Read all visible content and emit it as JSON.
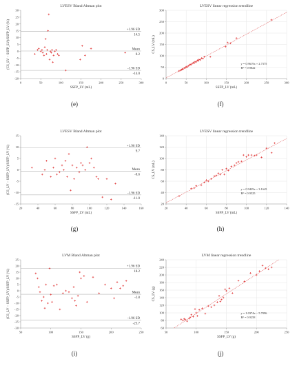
{
  "captions": [
    "(e)",
    "(f)",
    "(g)",
    "(h)",
    "(i)",
    "(j)"
  ],
  "chart_data": [
    {
      "type": "scatter",
      "title": "LVESV Bland Altman plot",
      "xlabel": "SSFP_LV (mL)",
      "ylabel": "(CS_LV − SSFP_LV)/SSFP_LV (%)",
      "xlim": [
        0,
        300
      ],
      "ylim": [
        -20,
        30
      ],
      "xticks": [
        0,
        50,
        100,
        150,
        200,
        250,
        300
      ],
      "yticks": [
        -20,
        -15,
        -10,
        -5,
        0,
        5,
        10,
        15,
        20,
        25,
        30
      ],
      "grid": false,
      "reference_lines": [
        {
          "y": 14.5,
          "label": "+1.96 SD",
          "value_label": "14.5"
        },
        {
          "y": 0.2,
          "label": "Mean",
          "value_label": "0.2"
        },
        {
          "y": -14.0,
          "label": "-1.96 SD",
          "value_label": "-14.0"
        }
      ],
      "points": [
        [
          35,
          -2
        ],
        [
          42,
          1
        ],
        [
          45,
          2
        ],
        [
          50,
          0
        ],
        [
          53,
          1
        ],
        [
          55,
          -1
        ],
        [
          58,
          -3
        ],
        [
          60,
          3
        ],
        [
          62,
          9
        ],
        [
          64,
          -2
        ],
        [
          66,
          1
        ],
        [
          68,
          15
        ],
        [
          70,
          27
        ],
        [
          72,
          -6
        ],
        [
          74,
          0
        ],
        [
          76,
          -1
        ],
        [
          78,
          1
        ],
        [
          80,
          -8
        ],
        [
          82,
          -3
        ],
        [
          85,
          0
        ],
        [
          88,
          1
        ],
        [
          92,
          -2
        ],
        [
          95,
          -3
        ],
        [
          112,
          -14
        ],
        [
          148,
          -6
        ],
        [
          153,
          4
        ],
        [
          160,
          -3
        ],
        [
          175,
          2
        ],
        [
          260,
          -1
        ]
      ]
    },
    {
      "type": "scatter",
      "title": "LVESV linear regression trendline",
      "xlabel": "SSFP_LV (mL)",
      "ylabel": "CS_LV (mL)",
      "xlim": [
        0,
        300
      ],
      "ylim": [
        0,
        300
      ],
      "xticks": [
        0,
        50,
        100,
        150,
        200,
        250,
        300
      ],
      "yticks": [
        0,
        50,
        100,
        150,
        200,
        250,
        300
      ],
      "grid": true,
      "fit": {
        "slope": 0.9619,
        "intercept": 2.7375,
        "equation": "y = 0.9619x + 2.7375",
        "r2": "R² = 0.9822"
      },
      "points": [
        [
          32,
          33
        ],
        [
          35,
          36
        ],
        [
          38,
          38
        ],
        [
          40,
          42
        ],
        [
          42,
          41
        ],
        [
          45,
          46
        ],
        [
          48,
          47
        ],
        [
          50,
          52
        ],
        [
          52,
          50
        ],
        [
          55,
          55
        ],
        [
          57,
          58
        ],
        [
          60,
          62
        ],
        [
          62,
          61
        ],
        [
          65,
          66
        ],
        [
          68,
          70
        ],
        [
          70,
          68
        ],
        [
          72,
          74
        ],
        [
          75,
          73
        ],
        [
          78,
          80
        ],
        [
          80,
          78
        ],
        [
          82,
          84
        ],
        [
          85,
          82
        ],
        [
          88,
          90
        ],
        [
          92,
          88
        ],
        [
          95,
          96
        ],
        [
          110,
          96
        ],
        [
          148,
          140
        ],
        [
          153,
          158
        ],
        [
          160,
          155
        ],
        [
          175,
          178
        ],
        [
          262,
          258
        ]
      ]
    },
    {
      "type": "scatter",
      "title": "LVESV Bland Altman plot",
      "xlabel": "SSFP_LV (mL)",
      "ylabel": "(CS_LV − SSFP_LV)/SSFP_LV (%)",
      "xlim": [
        20,
        160
      ],
      "ylim": [
        -15,
        15
      ],
      "xticks": [
        20,
        40,
        60,
        80,
        100,
        120,
        140,
        160
      ],
      "yticks": [
        -15,
        -10,
        -5,
        0,
        5,
        10,
        15
      ],
      "grid": false,
      "reference_lines": [
        {
          "y": 9.7,
          "label": "+1.96 SD",
          "value_label": "9.7"
        },
        {
          "y": -0.6,
          "label": "Mean",
          "value_label": "-0.6"
        },
        {
          "y": -11.0,
          "label": "-1.96 SD",
          "value_label": "-11.0"
        }
      ],
      "points": [
        [
          33,
          1
        ],
        [
          45,
          -2
        ],
        [
          48,
          0
        ],
        [
          50,
          4
        ],
        [
          55,
          -3
        ],
        [
          58,
          1
        ],
        [
          60,
          5
        ],
        [
          62,
          -2
        ],
        [
          65,
          -1
        ],
        [
          68,
          2
        ],
        [
          70,
          0
        ],
        [
          72,
          4
        ],
        [
          74,
          -3
        ],
        [
          76,
          7
        ],
        [
          78,
          -9
        ],
        [
          80,
          2
        ],
        [
          82,
          -4
        ],
        [
          85,
          1
        ],
        [
          88,
          -1
        ],
        [
          90,
          3
        ],
        [
          92,
          2
        ],
        [
          95,
          0
        ],
        [
          97,
          10
        ],
        [
          100,
          3
        ],
        [
          102,
          5
        ],
        [
          105,
          1
        ],
        [
          108,
          -3
        ],
        [
          110,
          -4
        ],
        [
          115,
          -12
        ],
        [
          120,
          -4
        ],
        [
          125,
          -13
        ],
        [
          130,
          -6
        ]
      ]
    },
    {
      "type": "scatter",
      "title": "LVESV linear regression trendline",
      "xlabel": "SSFP_LV (mL)",
      "ylabel": "CS_LV (mL)",
      "xlim": [
        20,
        140
      ],
      "ylim": [
        20,
        140
      ],
      "xticks": [
        20,
        40,
        60,
        80,
        100,
        120,
        140
      ],
      "yticks": [
        20,
        40,
        60,
        80,
        100,
        120,
        140
      ],
      "grid": true,
      "fit": {
        "slope": 0.9429,
        "intercept": 3.1645,
        "equation": "y = 0.9429x + 3.1645",
        "r2": "R² = 0.9525"
      },
      "points": [
        [
          33,
          34
        ],
        [
          45,
          47
        ],
        [
          48,
          48
        ],
        [
          50,
          52
        ],
        [
          55,
          53
        ],
        [
          58,
          58
        ],
        [
          60,
          62
        ],
        [
          62,
          60
        ],
        [
          65,
          64
        ],
        [
          68,
          69
        ],
        [
          70,
          70
        ],
        [
          72,
          74
        ],
        [
          74,
          72
        ],
        [
          76,
          80
        ],
        [
          78,
          72
        ],
        [
          80,
          82
        ],
        [
          82,
          79
        ],
        [
          85,
          86
        ],
        [
          88,
          88
        ],
        [
          90,
          92
        ],
        [
          92,
          94
        ],
        [
          95,
          95
        ],
        [
          97,
          106
        ],
        [
          100,
          103
        ],
        [
          102,
          106
        ],
        [
          105,
          106
        ],
        [
          108,
          105
        ],
        [
          110,
          106
        ],
        [
          115,
          102
        ],
        [
          120,
          118
        ],
        [
          125,
          110
        ],
        [
          128,
          127
        ]
      ]
    },
    {
      "type": "scatter",
      "title": "LVM Bland Altman plot",
      "xlabel": "SSFP_LV (g)",
      "ylabel": "(CS_LV − SSFP_LV)/SSFP_LV (%)",
      "xlim": [
        50,
        250
      ],
      "ylim": [
        -30,
        25
      ],
      "xticks": [
        50,
        100,
        150,
        200,
        250
      ],
      "yticks": [
        -30,
        -25,
        -20,
        -15,
        -10,
        -5,
        0,
        5,
        10,
        15,
        20,
        25
      ],
      "grid": false,
      "reference_lines": [
        {
          "y": 18.2,
          "label": "+1.96 SD",
          "value_label": "18.2"
        },
        {
          "y": -2.8,
          "label": "Mean",
          "value_label": "-2.8"
        },
        {
          "y": -23.7,
          "label": "-1.96 SD",
          "value_label": "-23.7"
        }
      ],
      "points": [
        [
          75,
          14
        ],
        [
          78,
          10
        ],
        [
          80,
          3
        ],
        [
          82,
          -1
        ],
        [
          85,
          -8
        ],
        [
          88,
          -5
        ],
        [
          90,
          -14
        ],
        [
          92,
          5
        ],
        [
          95,
          -10
        ],
        [
          98,
          18
        ],
        [
          100,
          -3
        ],
        [
          102,
          -9
        ],
        [
          105,
          4
        ],
        [
          110,
          5
        ],
        [
          115,
          -15
        ],
        [
          120,
          -2
        ],
        [
          125,
          0
        ],
        [
          130,
          -1
        ],
        [
          135,
          -6
        ],
        [
          138,
          3
        ],
        [
          140,
          -8
        ],
        [
          142,
          -12
        ],
        [
          145,
          -4
        ],
        [
          148,
          15
        ],
        [
          150,
          10
        ],
        [
          155,
          12
        ],
        [
          160,
          -9
        ],
        [
          170,
          11
        ],
        [
          180,
          -2
        ],
        [
          190,
          5
        ],
        [
          200,
          2
        ],
        [
          205,
          -6
        ],
        [
          210,
          7
        ],
        [
          215,
          2
        ],
        [
          220,
          4
        ],
        [
          225,
          8
        ]
      ]
    },
    {
      "type": "scatter",
      "title": "LVM linear regression trendline",
      "xlabel": "SSFP_LV (g)",
      "ylabel": "CS_LV (g)",
      "xlim": [
        50,
        250
      ],
      "ylim": [
        60,
        240
      ],
      "xticks": [
        50,
        100,
        150,
        200,
        250
      ],
      "yticks": [
        60,
        80,
        100,
        120,
        140,
        160,
        180,
        200,
        220,
        240
      ],
      "grid": true,
      "fit": {
        "slope": 1.0374,
        "intercept": -5.7096,
        "equation": "y = 1.0374x − 5.7096",
        "r2": "R² = 0.9258"
      },
      "points": [
        [
          75,
          83
        ],
        [
          78,
          80
        ],
        [
          80,
          84
        ],
        [
          82,
          82
        ],
        [
          85,
          78
        ],
        [
          88,
          85
        ],
        [
          90,
          88
        ],
        [
          92,
          95
        ],
        [
          95,
          90
        ],
        [
          98,
          110
        ],
        [
          100,
          100
        ],
        [
          102,
          92
        ],
        [
          105,
          108
        ],
        [
          110,
          112
        ],
        [
          115,
          98
        ],
        [
          120,
          118
        ],
        [
          125,
          115
        ],
        [
          130,
          120
        ],
        [
          135,
          128
        ],
        [
          138,
          145
        ],
        [
          140,
          130
        ],
        [
          142,
          135
        ],
        [
          145,
          140
        ],
        [
          148,
          162
        ],
        [
          150,
          158
        ],
        [
          155,
          165
        ],
        [
          160,
          152
        ],
        [
          170,
          185
        ],
        [
          180,
          183
        ],
        [
          190,
          205
        ],
        [
          200,
          200
        ],
        [
          205,
          210
        ],
        [
          210,
          225
        ],
        [
          215,
          218
        ],
        [
          220,
          215
        ],
        [
          225,
          220
        ]
      ]
    }
  ]
}
